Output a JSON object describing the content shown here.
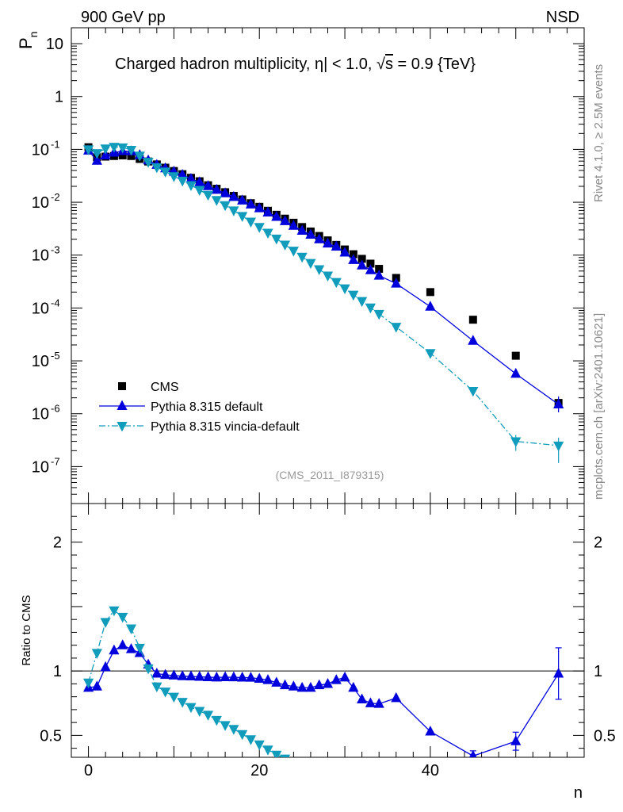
{
  "header": {
    "left": "900 GeV pp",
    "right": "NSD"
  },
  "side_labels": {
    "rivet": "Rivet 4.1.0, ≥ 2.5M events",
    "mcplots": "mcplots.cern.ch [arXiv:2401.10621]"
  },
  "chart_data": {
    "type": "scatter",
    "title_parts": {
      "t1": "Charged hadron multiplicity, ",
      "eta": "η",
      "t2": "| < 1.0, ",
      "sqrt": "√",
      "s": "s",
      "t3": " = 0.9 {TeV}"
    },
    "analysis_tag": "(CMS_2011_I879315)",
    "xlabel": "n",
    "ylabel_main": {
      "base": "P",
      "sub": "n"
    },
    "ylabel_ratio": "Ratio to CMS",
    "xlim": [
      -2,
      58
    ],
    "ylim_main_log": [
      2e-08,
      20
    ],
    "ylim_ratio": [
      0.33,
      2.3
    ],
    "x_ticks": [
      0,
      20,
      40
    ],
    "y_ticks_main": [
      {
        "exp": -7,
        "label": "10",
        "sup": "-7"
      },
      {
        "exp": -6,
        "label": "10",
        "sup": "-6"
      },
      {
        "exp": -5,
        "label": "10",
        "sup": "-5"
      },
      {
        "exp": -4,
        "label": "10",
        "sup": "-4"
      },
      {
        "exp": -3,
        "label": "10",
        "sup": "-3"
      },
      {
        "exp": -2,
        "label": "10",
        "sup": "-2"
      },
      {
        "exp": -1,
        "label": "10",
        "sup": "-1"
      },
      {
        "exp": 0,
        "label": "1",
        "sup": ""
      },
      {
        "exp": 1,
        "label": "10",
        "sup": ""
      }
    ],
    "y_ticks_ratio": [
      {
        "v": 0.5,
        "label": "0.5"
      },
      {
        "v": 1,
        "label": "1"
      },
      {
        "v": 2,
        "label": "2"
      }
    ],
    "x": [
      0,
      1,
      2,
      3,
      4,
      5,
      6,
      7,
      8,
      9,
      10,
      11,
      12,
      13,
      14,
      15,
      16,
      17,
      18,
      19,
      20,
      21,
      22,
      23,
      24,
      25,
      26,
      27,
      28,
      29,
      30,
      31,
      32,
      33,
      34,
      36,
      40,
      45,
      50,
      55
    ],
    "series": [
      {
        "name": "CMS",
        "color": "#000000",
        "marker": "square",
        "values": [
          0.11,
          0.071,
          0.073,
          0.075,
          0.077,
          0.075,
          0.066,
          0.059,
          0.052,
          0.045,
          0.039,
          0.034,
          0.029,
          0.025,
          0.021,
          0.018,
          0.0155,
          0.0132,
          0.0113,
          0.0096,
          0.0082,
          0.0069,
          0.0058,
          0.0049,
          0.0041,
          0.0034,
          0.0028,
          0.0023,
          0.0019,
          0.00156,
          0.00128,
          0.00104,
          0.00085,
          0.00069,
          0.00055,
          0.00037,
          0.0002,
          6e-05,
          1.25e-05,
          1.6e-06
        ],
        "ratio": []
      },
      {
        "name": "Pythia 8.315 default",
        "color": "#0000dd",
        "marker": "triangle-up",
        "line": "solid",
        "values": [
          0.095,
          0.061,
          0.077,
          0.087,
          0.093,
          0.092,
          0.078,
          0.062,
          0.051,
          0.044,
          0.038,
          0.033,
          0.0278,
          0.0239,
          0.0202,
          0.0172,
          0.0148,
          0.0126,
          0.0108,
          0.0091,
          0.0077,
          0.0064,
          0.0053,
          0.0044,
          0.0036,
          0.0029,
          0.00244,
          0.002,
          0.00166,
          0.00145,
          0.00112,
          0.00081,
          0.00064,
          0.00052,
          0.00041,
          0.00029,
          0.000106,
          2.4e-05,
          5.7e-06,
          1.5e-06
        ],
        "ratio": [
          0.87,
          0.88,
          1.03,
          1.16,
          1.2,
          1.17,
          1.14,
          1.05,
          0.98,
          0.97,
          0.965,
          0.96,
          0.958,
          0.955,
          0.952,
          0.95,
          0.952,
          0.951,
          0.949,
          0.948,
          0.94,
          0.93,
          0.91,
          0.89,
          0.88,
          0.87,
          0.87,
          0.89,
          0.9,
          0.93,
          0.95,
          0.87,
          0.78,
          0.75,
          0.745,
          0.79,
          0.53,
          0.34,
          0.455,
          0.98
        ],
        "ratio_err": {
          "45": 0.04,
          "50": 0.07,
          "55": 0.2
        }
      },
      {
        "name": "Pythia 8.315 vincia-default",
        "color": "#119cbb",
        "marker": "triangle-down",
        "line": "dashdot",
        "values": [
          0.1,
          0.085,
          0.104,
          0.112,
          0.109,
          0.098,
          0.076,
          0.058,
          0.046,
          0.038,
          0.031,
          0.0255,
          0.021,
          0.0171,
          0.0138,
          0.011,
          0.0088,
          0.007,
          0.0055,
          0.0043,
          0.0034,
          0.00265,
          0.00205,
          0.00158,
          0.00121,
          0.00093,
          0.00071,
          0.00054,
          0.00041,
          0.00031,
          0.000235,
          0.000178,
          0.000135,
          0.000102,
          7.7e-05,
          4.4e-05,
          1.4e-05,
          2.7e-06,
          3e-07,
          2.5e-07
        ],
        "ratio": [
          0.91,
          1.14,
          1.38,
          1.47,
          1.42,
          1.33,
          1.18,
          1.02,
          0.88,
          0.84,
          0.8,
          0.76,
          0.72,
          0.69,
          0.66,
          0.62,
          0.58,
          0.55,
          0.51,
          0.47,
          0.43,
          0.39,
          0.35,
          0.32
        ],
        "ratio_err": {}
      }
    ],
    "legend_placement": "lower-left"
  }
}
